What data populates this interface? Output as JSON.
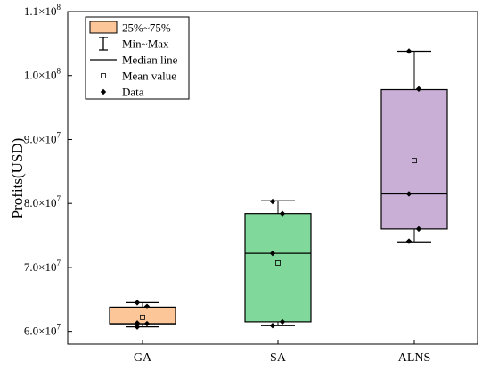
{
  "chart_data": {
    "type": "box",
    "ylabel": "Profits(USD)",
    "ylim": [
      58000000,
      110000000
    ],
    "y_ticks": [
      {
        "value": 60000000,
        "mantissa": "6.0",
        "exp": "7"
      },
      {
        "value": 70000000,
        "mantissa": "7.0",
        "exp": "7"
      },
      {
        "value": 80000000,
        "mantissa": "8.0",
        "exp": "7"
      },
      {
        "value": 90000000,
        "mantissa": "9.0",
        "exp": "7"
      },
      {
        "value": 100000000,
        "mantissa": "1.0",
        "exp": "8"
      },
      {
        "value": 110000000,
        "mantissa": "1.1",
        "exp": "8"
      }
    ],
    "categories": [
      "GA",
      "SA",
      "ALNS"
    ],
    "boxes": [
      {
        "name": "GA",
        "color": "#fcc699",
        "min": 60700000,
        "q1": 61200000,
        "median": 61200000,
        "q3": 63800000,
        "max": 64500000,
        "mean": 62200000,
        "points": [
          64500000,
          63900000,
          61300000,
          61200000,
          60700000
        ]
      },
      {
        "name": "SA",
        "color": "#80d99a",
        "min": 60900000,
        "q1": 61500000,
        "median": 72200000,
        "q3": 78400000,
        "max": 80400000,
        "mean": 70700000,
        "points": [
          80300000,
          78400000,
          72200000,
          61500000,
          60900000
        ]
      },
      {
        "name": "ALNS",
        "color": "#c9aed6",
        "min": 74000000,
        "q1": 76000000,
        "median": 81500000,
        "q3": 97800000,
        "max": 103800000,
        "mean": 86700000,
        "points": [
          103800000,
          97900000,
          81500000,
          76000000,
          74100000
        ]
      }
    ],
    "legend": {
      "placement": "top-left",
      "items": [
        "25%~75%",
        "Min~Max",
        "Median line",
        "Mean value",
        "Data"
      ]
    },
    "grid": false
  }
}
